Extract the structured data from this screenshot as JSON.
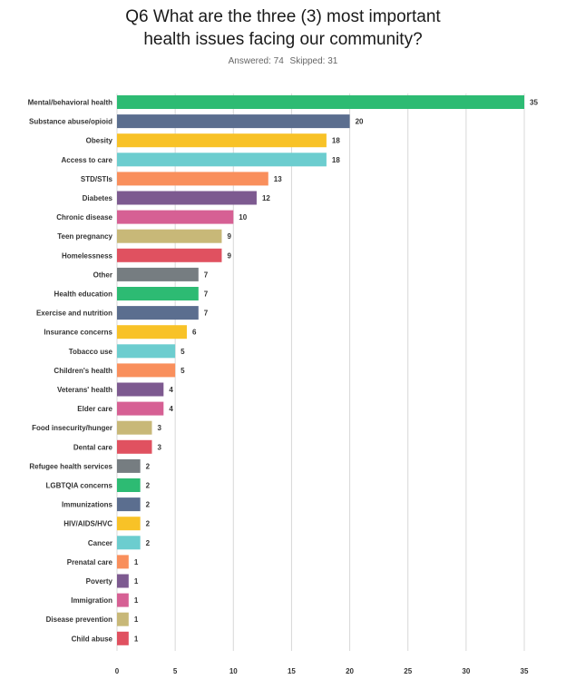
{
  "title": "Q6 What are the three (3) most important\nhealth issues facing our community?",
  "answered_label": "Answered: 74",
  "skipped_label": "Skipped: 31",
  "chart_data": {
    "type": "bar",
    "orientation": "horizontal",
    "title": "Q6 What are the three (3) most important health issues facing our community?",
    "xlim": [
      0,
      35
    ],
    "xticks": [
      0,
      5,
      10,
      15,
      20,
      25,
      30,
      35
    ],
    "grid": true,
    "categories": [
      "Mental/behavioral health",
      "Substance abuse/opioid",
      "Obesity",
      "Access to care",
      "STD/STIs",
      "Diabetes",
      "Chronic disease",
      "Teen pregnancy",
      "Homelessness",
      "Other",
      "Health education",
      "Exercise and nutrition",
      "Insurance concerns",
      "Tobacco use",
      "Children's health",
      "Veterans' health",
      "Elder care",
      "Food insecurity/hunger",
      "Dental care",
      "Refugee health services",
      "LGBTQIA concerns",
      "Immunizations",
      "HIV/AIDS/HVC",
      "Cancer",
      "Prenatal care",
      "Poverty",
      "Immigration",
      "Disease prevention",
      "Child abuse"
    ],
    "values": [
      35,
      20,
      18,
      18,
      13,
      12,
      10,
      9,
      9,
      7,
      7,
      7,
      6,
      5,
      5,
      4,
      4,
      3,
      3,
      2,
      2,
      2,
      2,
      2,
      1,
      1,
      1,
      1,
      1
    ],
    "colors": [
      "#2dbb73",
      "#5b6e8f",
      "#f8c227",
      "#6ccdcf",
      "#f98f5c",
      "#7d5a90",
      "#d66094",
      "#c8b878",
      "#e05160",
      "#767d81"
    ]
  }
}
